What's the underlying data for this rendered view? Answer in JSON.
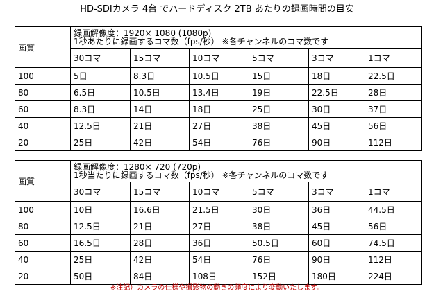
{
  "title": "HD-SDIカメラ 4台 でハードディスク 2TB あたりの録画時間の目安",
  "tables": [
    {
      "quality_label": "画質",
      "resolution_line": "録画解像度：1920× 1080 (1080p)",
      "fps_line": "1秒あたりに録画するコマ数（fps/秒）  ※各チャンネルのコマ数です",
      "columns": [
        "30コマ",
        "15コマ",
        "10コマ",
        "5コマ",
        "3コマ",
        "1コマ"
      ],
      "rows": [
        {
          "quality": "100",
          "values": [
            "5日",
            "8.3日",
            "10.5日",
            "15日",
            "18日",
            "22.5日"
          ]
        },
        {
          "quality": "80",
          "values": [
            "6.5日",
            "10.5日",
            "13.4日",
            "19日",
            "22.5日",
            "28日"
          ]
        },
        {
          "quality": "60",
          "values": [
            "8.3日",
            "14日",
            "18日",
            "25日",
            "30日",
            "37日"
          ]
        },
        {
          "quality": "40",
          "values": [
            "12.5日",
            "21日",
            "27日",
            "38日",
            "45日",
            "56日"
          ]
        },
        {
          "quality": "20",
          "values": [
            "25日",
            "42日",
            "54日",
            "76日",
            "90日",
            "112日"
          ]
        }
      ]
    },
    {
      "quality_label": "画質",
      "resolution_line": "録画解像度：1280× 720 (720p)",
      "fps_line": "1秒当たりに録画するコマ数（fps/秒）  ※各チャンネルのコマ数です",
      "columns": [
        "30コマ",
        "15コマ",
        "10コマ",
        "5コマ",
        "3コマ",
        "1コマ"
      ],
      "rows": [
        {
          "quality": "100",
          "values": [
            "10日",
            "16.6日",
            "21.5日",
            "30日",
            "36日",
            "44.5日"
          ]
        },
        {
          "quality": "80",
          "values": [
            "12.5日",
            "21日",
            "27日",
            "38日",
            "45日",
            "56日"
          ]
        },
        {
          "quality": "60",
          "values": [
            "16.5日",
            "28日",
            "36日",
            "50.5日",
            "60日",
            "74.5日"
          ]
        },
        {
          "quality": "40",
          "values": [
            "25日",
            "42日",
            "54日",
            "76日",
            "90日",
            "112日"
          ]
        },
        {
          "quality": "20",
          "values": [
            "50日",
            "84日",
            "108日",
            "152日",
            "180日",
            "224日"
          ]
        }
      ]
    }
  ],
  "footnote": "※注記）カメラの仕様や撮影物の動きの頻度により変動いたします。",
  "colors": {
    "footnote": "#c00000",
    "border": "#000000",
    "background": "#ffffff"
  }
}
